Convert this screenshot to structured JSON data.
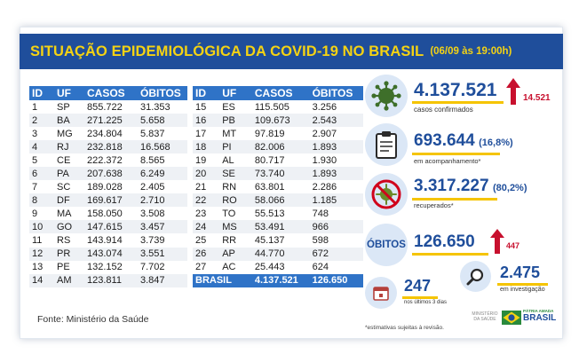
{
  "header": {
    "title": "SITUAÇÃO EPIDEMIOLÓGICA DA COVID-19 NO BRASIL",
    "date": "(06/09 às 19:00h)"
  },
  "table": {
    "columns": [
      "ID",
      "UF",
      "CASOS",
      "ÓBITOS"
    ],
    "left_rows": [
      [
        "1",
        "SP",
        "855.722",
        "31.353"
      ],
      [
        "2",
        "BA",
        "271.225",
        "5.658"
      ],
      [
        "3",
        "MG",
        "234.804",
        "5.837"
      ],
      [
        "4",
        "RJ",
        "232.818",
        "16.568"
      ],
      [
        "5",
        "CE",
        "222.372",
        "8.565"
      ],
      [
        "6",
        "PA",
        "207.638",
        "6.249"
      ],
      [
        "7",
        "SC",
        "189.028",
        "2.405"
      ],
      [
        "8",
        "DF",
        "169.617",
        "2.710"
      ],
      [
        "9",
        "MA",
        "158.050",
        "3.508"
      ],
      [
        "10",
        "GO",
        "147.615",
        "3.457"
      ],
      [
        "11",
        "RS",
        "143.914",
        "3.739"
      ],
      [
        "12",
        "PR",
        "143.074",
        "3.551"
      ],
      [
        "13",
        "PE",
        "132.152",
        "7.702"
      ],
      [
        "14",
        "AM",
        "123.811",
        "3.847"
      ]
    ],
    "right_rows": [
      [
        "15",
        "ES",
        "115.505",
        "3.256"
      ],
      [
        "16",
        "PB",
        "109.673",
        "2.543"
      ],
      [
        "17",
        "MT",
        "97.819",
        "2.907"
      ],
      [
        "18",
        "PI",
        "82.006",
        "1.893"
      ],
      [
        "19",
        "AL",
        "80.717",
        "1.930"
      ],
      [
        "20",
        "SE",
        "73.740",
        "1.893"
      ],
      [
        "21",
        "RN",
        "63.801",
        "2.286"
      ],
      [
        "22",
        "RO",
        "58.066",
        "1.185"
      ],
      [
        "23",
        "TO",
        "55.513",
        "748"
      ],
      [
        "24",
        "MS",
        "53.491",
        "966"
      ],
      [
        "25",
        "RR",
        "45.137",
        "598"
      ],
      [
        "26",
        "AP",
        "44.770",
        "672"
      ],
      [
        "27",
        "AC",
        "25.443",
        "624"
      ]
    ],
    "total": {
      "label": "BRASIL",
      "casos": "4.137.521",
      "obitos": "126.650"
    }
  },
  "stats": {
    "confirmed": {
      "value": "4.137.521",
      "label": "casos confirmados",
      "delta": "14.521",
      "icon": "virus-icon"
    },
    "monitoring": {
      "value": "693.644",
      "pct": "(16,8%)",
      "label": "em acompanhamento*",
      "icon": "clipboard-icon"
    },
    "recovered": {
      "value": "3.317.227",
      "pct": "(80,2%)",
      "label": "recuperados*",
      "icon": "virus-crossed-icon"
    },
    "deaths": {
      "label": "ÓBITOS",
      "value": "126.650",
      "delta": "447"
    },
    "investigation": {
      "value": "2.475",
      "label": "em investigação",
      "icon": "magnifier-icon"
    },
    "last3": {
      "value": "247",
      "label": "nos últimos 3 dias",
      "icon": "calendar-icon"
    }
  },
  "footer": {
    "source": "Fonte: Ministério da Saúde",
    "note": "*estimativas sujeitas à revisão.",
    "ministry": "MINISTÉRIO DA SAÚDE",
    "gov_small": "PÁTRIA AMADA",
    "gov_big": "BRASIL"
  },
  "colors": {
    "title_bg": "#1f4e9b",
    "title_text": "#f5d313",
    "table_header": "#2f73c7",
    "accent_yellow": "#f5c400",
    "alert_red": "#c8102e"
  }
}
